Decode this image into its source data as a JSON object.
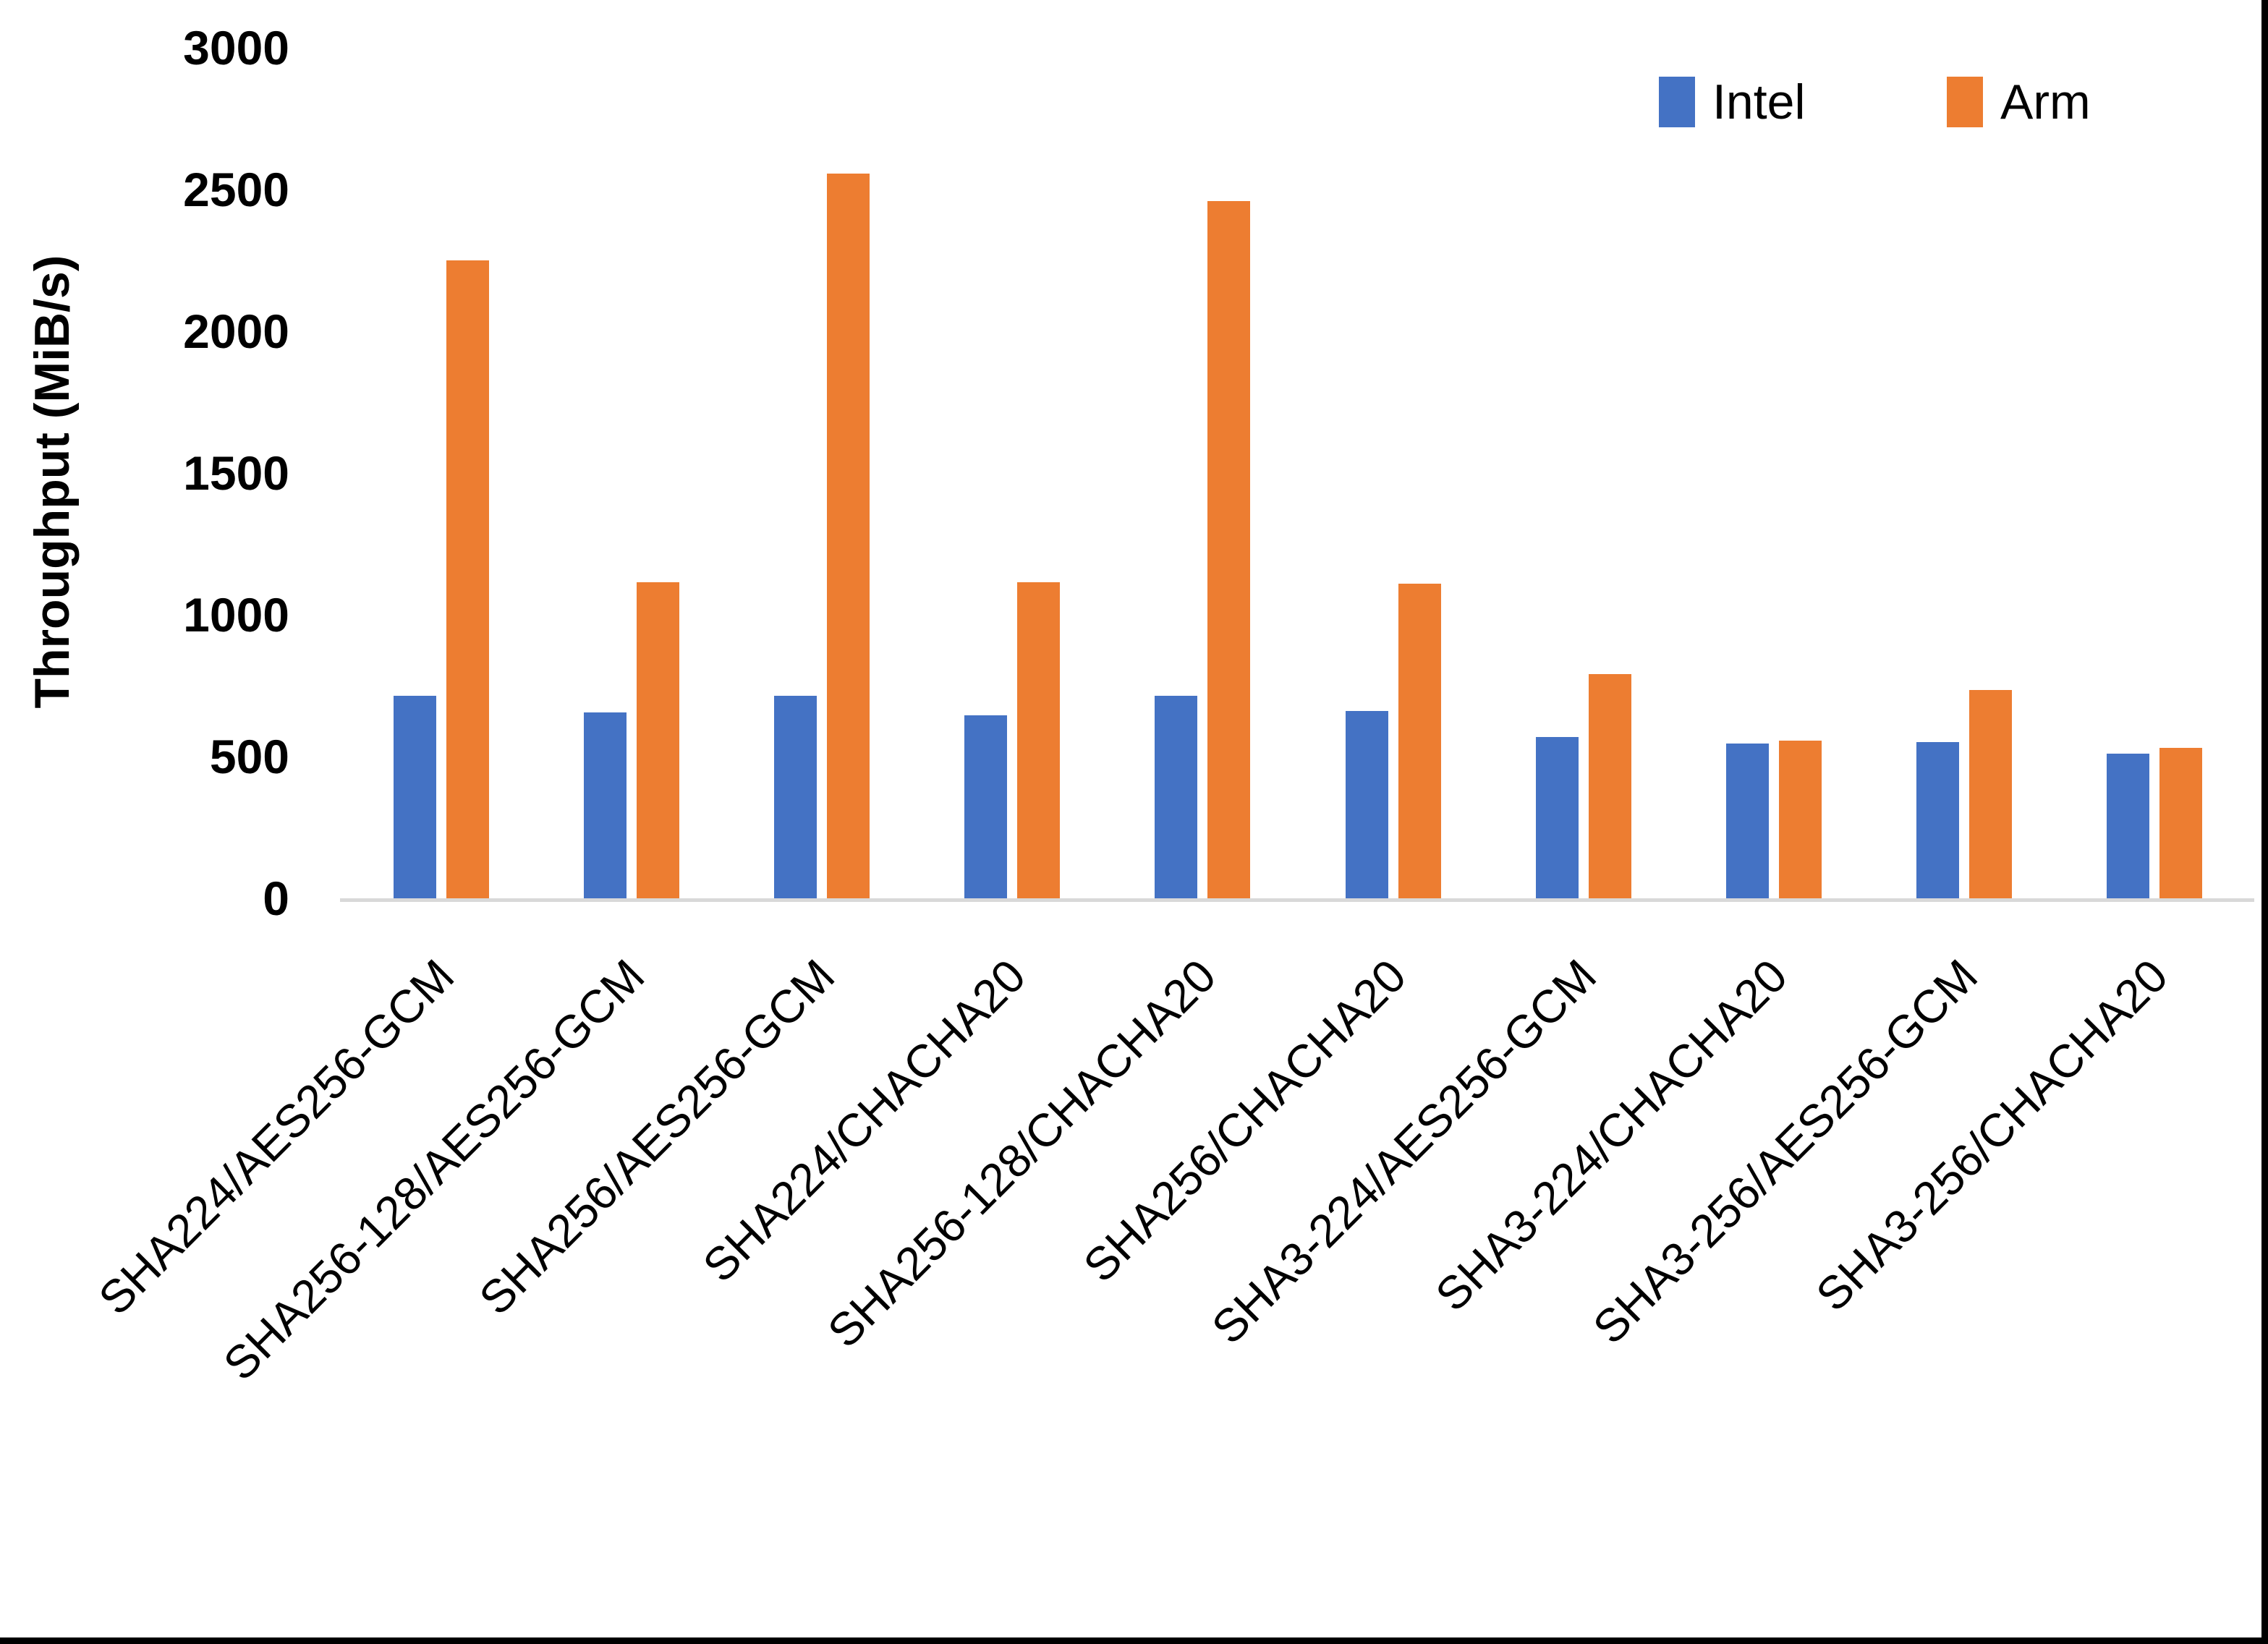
{
  "figure": {
    "background": "#ffffff",
    "border_right_color": "#000000",
    "border_bottom_color": "#000000"
  },
  "legend": {
    "items": [
      {
        "label": "Intel",
        "color": "#4472C4"
      },
      {
        "label": "Arm",
        "color": "#ED7D31"
      }
    ]
  },
  "chart_data": {
    "type": "bar",
    "title": "",
    "xlabel": "",
    "ylabel": "Throughput (MiB/s)",
    "ylim": [
      0,
      3000
    ],
    "yticks": [
      0,
      500,
      1000,
      1500,
      2000,
      2500,
      3000
    ],
    "grid": false,
    "legend_position": "top-right",
    "axis_line_color": "#d9d9d9",
    "categories": [
      "SHA224/AES256-GCM",
      "SHA256-128/AES256-GCM",
      "SHA256/AES256-GCM",
      "SHA224/CHACHA20",
      "SHA256-128/CHACHA20",
      "SHA256/CHACHA20",
      "SHA3-224/AES256-GCM",
      "SHA3-224/CHACHA20",
      "SHA3-256/AES256-GCM",
      "SHA3-256/CHACHA20"
    ],
    "series": [
      {
        "name": "Intel",
        "color": "#4472C4",
        "values": [
          715,
          655,
          715,
          645,
          715,
          660,
          570,
          545,
          550,
          510
        ]
      },
      {
        "name": "Arm",
        "color": "#ED7D31",
        "values": [
          2250,
          1115,
          2555,
          1115,
          2460,
          1110,
          790,
          555,
          735,
          530
        ]
      }
    ]
  }
}
